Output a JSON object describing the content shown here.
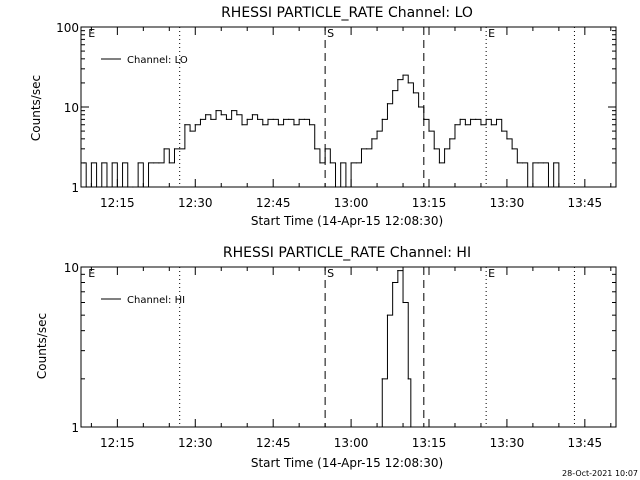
{
  "footer": {
    "timestamp": "28-Oct-2021 10:07"
  },
  "chart_data": [
    {
      "type": "line",
      "title": "RHESSI PARTICLE_RATE Channel: LO",
      "xlabel": "Start Time (14-Apr-15 12:08:30)",
      "ylabel": "Counts/sec",
      "yscale": "log",
      "xlim": [
        "12:08",
        "13:51"
      ],
      "ylim": [
        1,
        100
      ],
      "xticks": [
        "12:15",
        "12:30",
        "12:45",
        "13:00",
        "13:15",
        "13:30",
        "13:45"
      ],
      "yticks": [
        "1",
        "10",
        "100"
      ],
      "legend": {
        "label": "Channel: LO",
        "position": "top-left"
      },
      "markers": [
        {
          "label": "E",
          "time": "12:09",
          "style": "none"
        },
        {
          "label": "",
          "time": "12:27",
          "style": "dotted"
        },
        {
          "label": "S",
          "time": "12:55",
          "style": "dashed"
        },
        {
          "label": "",
          "time": "13:14",
          "style": "dashed"
        },
        {
          "label": "E",
          "time": "13:26",
          "style": "dotted"
        },
        {
          "label": "",
          "time": "13:43",
          "style": "dotted"
        }
      ],
      "series": [
        {
          "name": "Channel: LO",
          "x": [
            "12:08:30",
            "12:09",
            "12:10",
            "12:11",
            "12:12",
            "12:13",
            "12:14",
            "12:15",
            "12:16",
            "12:17",
            "12:18",
            "12:19",
            "12:20",
            "12:21",
            "12:22",
            "12:23",
            "12:24",
            "12:25",
            "12:26",
            "12:27",
            "12:28",
            "12:29",
            "12:30",
            "12:31",
            "12:32",
            "12:33",
            "12:34",
            "12:35",
            "12:36",
            "12:37",
            "12:38",
            "12:39",
            "12:40",
            "12:41",
            "12:42",
            "12:43",
            "12:44",
            "12:45",
            "12:46",
            "12:47",
            "12:48",
            "12:49",
            "12:50",
            "12:51",
            "12:52",
            "12:53",
            "12:54",
            "12:55",
            "12:56",
            "12:57",
            "12:58",
            "12:59",
            "13:00",
            "13:01",
            "13:02",
            "13:03",
            "13:04",
            "13:05",
            "13:06",
            "13:07",
            "13:08",
            "13:09",
            "13:10",
            "13:11",
            "13:12",
            "13:13",
            "13:14",
            "13:15",
            "13:16",
            "13:17",
            "13:18",
            "13:19",
            "13:20",
            "13:21",
            "13:22",
            "13:23",
            "13:24",
            "13:25",
            "13:26",
            "13:27",
            "13:28",
            "13:29",
            "13:30",
            "13:31",
            "13:32",
            "13:33",
            "13:34",
            "13:35"
          ],
          "y": [
            2,
            1,
            2,
            1,
            2,
            1,
            2,
            1,
            2,
            1,
            1,
            2,
            1,
            2,
            2,
            2,
            3,
            2,
            3,
            3,
            6,
            5,
            6,
            7,
            8,
            7,
            9,
            8,
            7,
            9,
            8,
            6,
            7,
            8,
            7,
            6,
            7,
            7,
            6,
            7,
            7,
            6,
            7,
            7,
            6,
            3,
            2,
            3,
            2,
            1,
            2,
            1,
            2,
            2,
            3,
            3,
            4,
            5,
            7,
            11,
            16,
            22,
            25,
            20,
            15,
            10,
            7,
            5,
            3,
            2,
            3,
            4,
            6,
            7,
            6,
            7,
            7,
            6,
            7,
            6,
            7,
            5,
            4,
            3,
            2,
            2,
            1,
            2
          ],
          "extra_points": [
            {
              "x": "13:36",
              "y": 2
            },
            {
              "x": "13:37",
              "y": 2
            },
            {
              "x": "13:38",
              "y": 1
            },
            {
              "x": "13:39",
              "y": 2
            },
            {
              "x": "13:40",
              "y": 1
            }
          ]
        }
      ]
    },
    {
      "type": "line",
      "title": "RHESSI PARTICLE_RATE Channel: HI",
      "xlabel": "Start Time (14-Apr-15 12:08:30)",
      "ylabel": "Counts/sec",
      "yscale": "log",
      "xlim": [
        "12:08",
        "13:51"
      ],
      "ylim": [
        1,
        10
      ],
      "xticks": [
        "12:15",
        "12:30",
        "12:45",
        "13:00",
        "13:15",
        "13:30",
        "13:45"
      ],
      "yticks": [
        "1",
        "10"
      ],
      "legend": {
        "label": "Channel: HI",
        "position": "top-left"
      },
      "markers": [
        {
          "label": "E",
          "time": "12:09",
          "style": "none"
        },
        {
          "label": "",
          "time": "12:27",
          "style": "dotted"
        },
        {
          "label": "S",
          "time": "12:55",
          "style": "dashed"
        },
        {
          "label": "",
          "time": "13:14",
          "style": "dashed"
        },
        {
          "label": "E",
          "time": "13:26",
          "style": "dotted"
        },
        {
          "label": "",
          "time": "13:43",
          "style": "dotted"
        }
      ],
      "series": [
        {
          "name": "Channel: HI",
          "x": [
            "13:05:30",
            "13:06",
            "13:07",
            "13:08",
            "13:09",
            "13:10",
            "13:11",
            "13:11:30"
          ],
          "y": [
            1,
            2,
            5,
            8,
            9.5,
            6,
            2,
            1
          ]
        }
      ]
    }
  ]
}
